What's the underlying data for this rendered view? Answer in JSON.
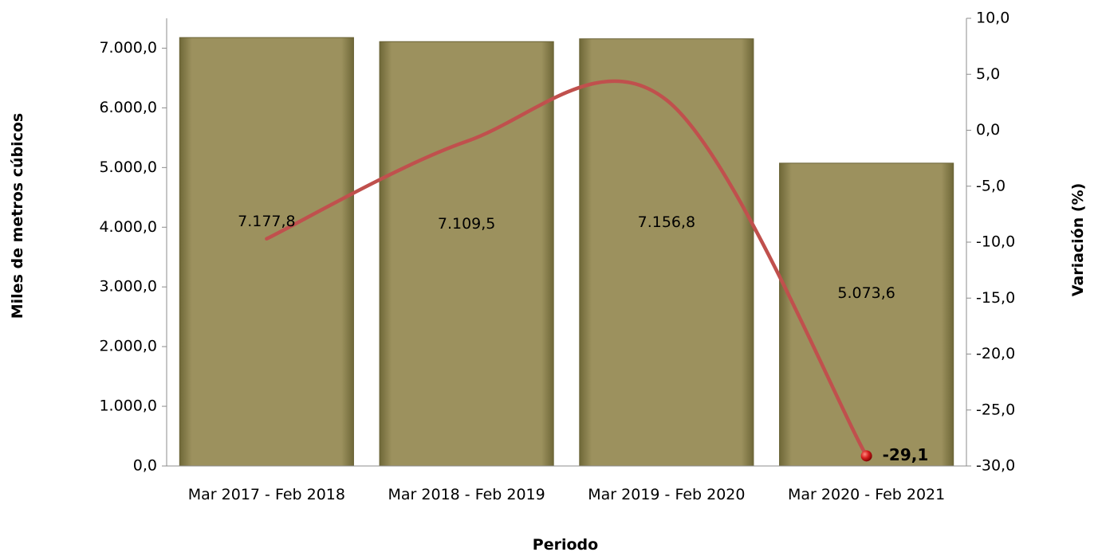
{
  "chart_data": {
    "type": "bar",
    "categories": [
      "Mar 2017 - Feb 2018",
      "Mar 2018 - Feb 2019",
      "Mar 2019 - Feb 2020",
      "Mar 2020 - Feb 2021"
    ],
    "series": [
      {
        "kind": "bar",
        "axis": "left",
        "values": [
          7177.8,
          7109.5,
          7156.8,
          5073.6
        ],
        "value_labels": [
          "7.177,8",
          "7.109,5",
          "7.156,8",
          "5.073,6"
        ],
        "color": "#9c915e"
      },
      {
        "kind": "line",
        "axis": "right",
        "values": [
          -9.7,
          -1.0,
          2.7,
          -29.1
        ],
        "value_labels": [
          "",
          "",
          "",
          "-29,1"
        ],
        "color": "#c0504d"
      }
    ],
    "xlabel": "Periodo",
    "ylabel": "Miles de metros cúbicos",
    "y2label": "Variación (%)",
    "ylim": [
      0,
      7500
    ],
    "y2lim": [
      -30,
      10
    ],
    "yticks": [
      0,
      1000,
      2000,
      3000,
      4000,
      5000,
      6000,
      7000
    ],
    "ytick_labels": [
      "0,0",
      "1.000,0",
      "2.000,0",
      "3.000,0",
      "4.000,0",
      "5.000,0",
      "6.000,0",
      "7.000,0"
    ],
    "y2ticks": [
      -30,
      -25,
      -20,
      -15,
      -10,
      -5,
      0,
      5,
      10
    ],
    "y2tick_labels": [
      "-30,0",
      "-25,0",
      "-20,0",
      "-15,0",
      "-10,0",
      "-5,0",
      "0,0",
      "5,0",
      "10,0"
    ],
    "grid": false,
    "legend": "none"
  }
}
